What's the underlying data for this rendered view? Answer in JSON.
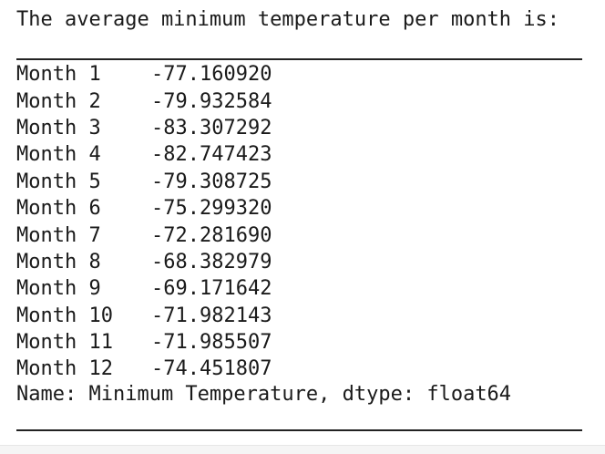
{
  "heading": "The average minimum temperature per month is:",
  "table": {
    "rows": [
      {
        "label": "Month 1",
        "value": "-77.160920"
      },
      {
        "label": "Month 2",
        "value": "-79.932584"
      },
      {
        "label": "Month 3",
        "value": "-83.307292"
      },
      {
        "label": "Month 4",
        "value": "-82.747423"
      },
      {
        "label": "Month 5",
        "value": "-79.308725"
      },
      {
        "label": "Month 6",
        "value": "-75.299320"
      },
      {
        "label": "Month 7",
        "value": "-72.281690"
      },
      {
        "label": "Month 8",
        "value": "-68.382979"
      },
      {
        "label": "Month 9",
        "value": "-69.171642"
      },
      {
        "label": "Month 10",
        "value": "-71.982143"
      },
      {
        "label": "Month 11",
        "value": "-71.985507"
      },
      {
        "label": "Month 12",
        "value": "-74.451807"
      }
    ]
  },
  "footer": "Name: Minimum Temperature, dtype: float64"
}
